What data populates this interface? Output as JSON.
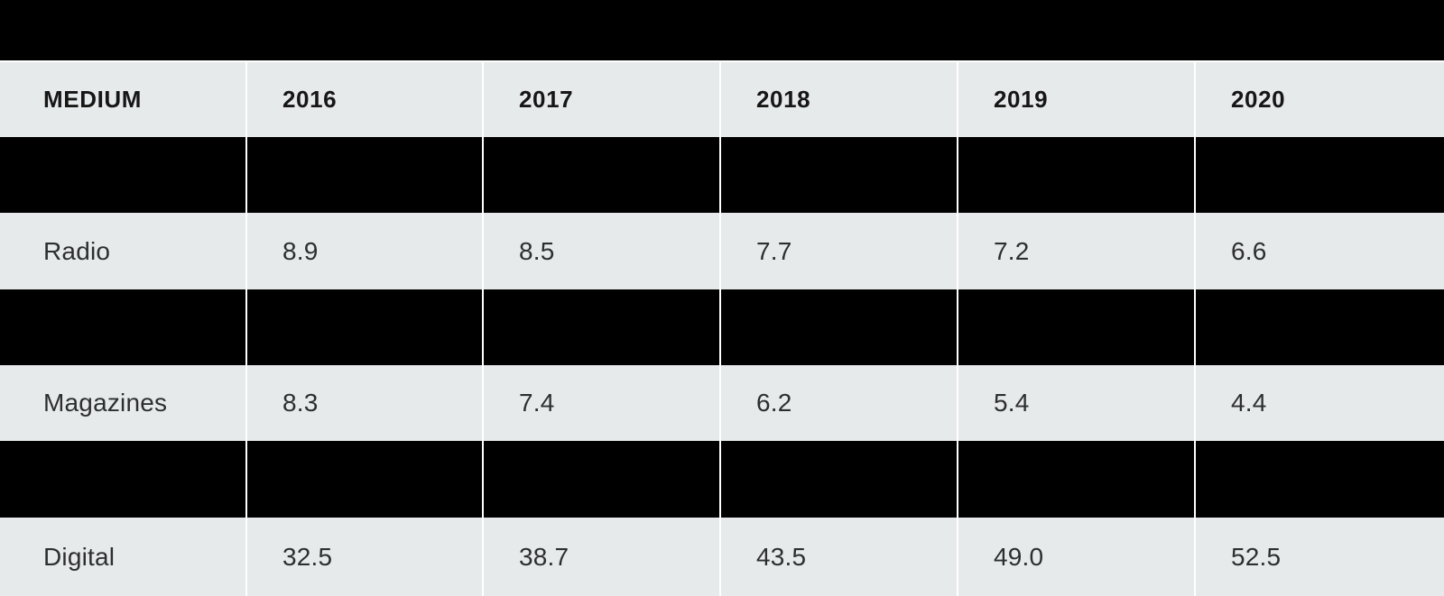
{
  "chart_data": {
    "type": "table",
    "title": "",
    "columns": [
      "MEDIUM",
      "2016",
      "2017",
      "2018",
      "2019",
      "2020"
    ],
    "rows": [
      [
        "",
        "",
        "",
        "",
        "",
        ""
      ],
      [
        "Radio",
        "8.9",
        "8.5",
        "7.7",
        "7.2",
        "6.6"
      ],
      [
        "",
        "",
        "",
        "",
        "",
        ""
      ],
      [
        "Magazines",
        "8.3",
        "7.4",
        "6.2",
        "5.4",
        "4.4"
      ],
      [
        "",
        "",
        "",
        "",
        "",
        ""
      ],
      [
        "Digital",
        "32.5",
        "38.7",
        "43.5",
        "49.0",
        "52.5"
      ]
    ],
    "redacted_rows": [
      0,
      2,
      4
    ],
    "title_redacted": true,
    "layout": {
      "grid": "white 2px vertical separators between columns",
      "row_background": "#e7eaeb",
      "redaction_color": "#000000"
    }
  },
  "colors": {
    "row_background": "#e7eaeb",
    "redaction": "#000000",
    "header_text": "#161616",
    "body_text": "#2d2e30",
    "grid_line": "#ffffff"
  }
}
